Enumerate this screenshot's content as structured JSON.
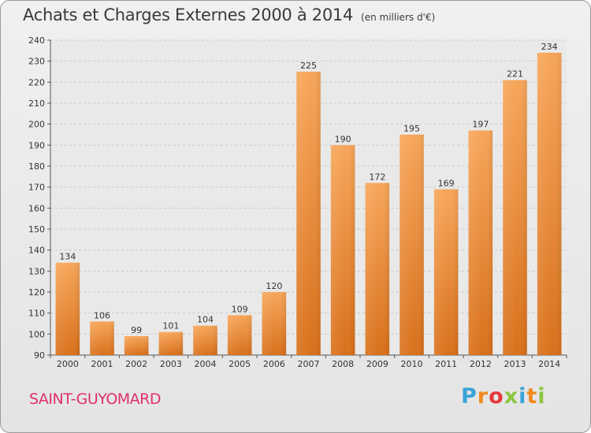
{
  "header": {
    "title": "Achats et Charges Externes 2000 à 2014",
    "subtitle": "(en milliers d'€)"
  },
  "footer": {
    "commune": "SAINT-GUYOMARD",
    "brand": "Proxiti",
    "brand_letters": [
      {
        "ch": "P",
        "color": "#3aa3d8"
      },
      {
        "ch": "r",
        "color": "#f08a1c"
      },
      {
        "ch": "o",
        "color": "#e5363a"
      },
      {
        "ch": "x",
        "color": "#8cc63f"
      },
      {
        "ch": "i",
        "color": "#3aa3d8"
      },
      {
        "ch": "t",
        "color": "#f08a1c"
      },
      {
        "ch": "i",
        "color": "#8cc63f"
      }
    ]
  },
  "chart_data": {
    "type": "bar",
    "title": "Achats et Charges Externes 2000 à 2014",
    "subtitle": "(en milliers d'€)",
    "categories": [
      "2000",
      "2001",
      "2002",
      "2003",
      "2004",
      "2005",
      "2006",
      "2007",
      "2008",
      "2009",
      "2010",
      "2011",
      "2012",
      "2013",
      "2014"
    ],
    "values": [
      134,
      106,
      99,
      101,
      104,
      109,
      120,
      225,
      190,
      172,
      195,
      169,
      197,
      221,
      234
    ],
    "ylim": [
      90,
      240
    ],
    "yticks": [
      90,
      100,
      110,
      120,
      130,
      140,
      150,
      160,
      170,
      180,
      190,
      200,
      210,
      220,
      230,
      240
    ],
    "grid": true,
    "data_labels": true,
    "bar_color": "#f0943c",
    "bar_color_dark": "#d9701a"
  }
}
